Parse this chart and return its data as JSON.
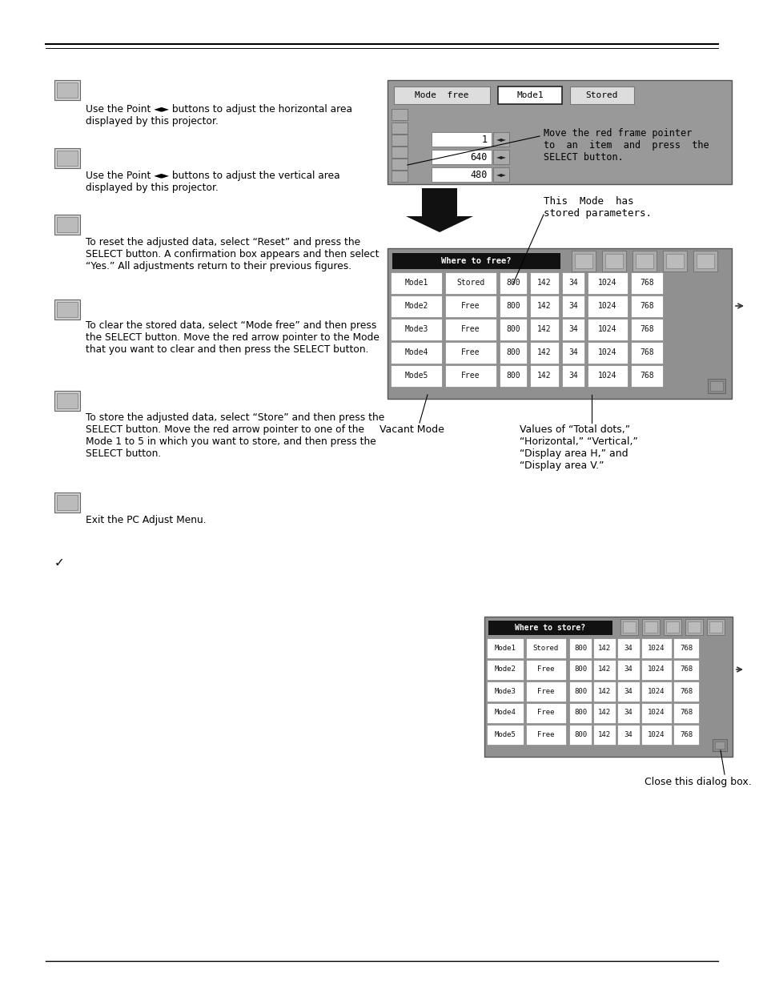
{
  "bg_color": "#ffffff",
  "text1": "Use the Point ◄► buttons to adjust the horizontal area\ndisplayed by this projector.",
  "text2": "Use the Point ◄► buttons to adjust the vertical area\ndisplayed by this projector.",
  "text3": "To reset the adjusted data, select “Reset” and press the\nSELECT button. A confirmation box appears and then select\n“Yes.” All adjustments return to their previous figures.",
  "text4": "To clear the stored data, select “Mode free” and then press\nthe SELECT button. Move the red arrow pointer to the Mode\nthat you want to clear and then press the SELECT button.",
  "text5": "To store the adjusted data, select “Store” and then press the\nSELECT button. Move the red arrow pointer to one of the\nMode 1 to 5 in which you want to store, and then press the\nSELECT button.",
  "text6": "Exit the PC Adjust Menu.",
  "arrow_note": "Move the red frame pointer\nto  an  item  and  press  the\nSELECT button.",
  "mode_stored_note": "This  Mode  has\nstored parameters.",
  "vacant_mode": "Vacant Mode",
  "values_note": "Values of “Total dots,”\n“Horizontal,” “Vertical,”\n“Display area H,” and\n“Display area V.”",
  "close_note": "Close this dialog box.",
  "rows": [
    [
      "Mode1",
      "Stored",
      "800",
      "142",
      "34",
      "1024",
      "768"
    ],
    [
      "Mode2",
      "Free",
      "800",
      "142",
      "34",
      "1024",
      "768"
    ],
    [
      "Mode3",
      "Free",
      "800",
      "142",
      "34",
      "1024",
      "768"
    ],
    [
      "Mode4",
      "Free",
      "800",
      "142",
      "34",
      "1024",
      "768"
    ],
    [
      "Mode5",
      "Free",
      "800",
      "142",
      "34",
      "1024",
      "768"
    ]
  ]
}
